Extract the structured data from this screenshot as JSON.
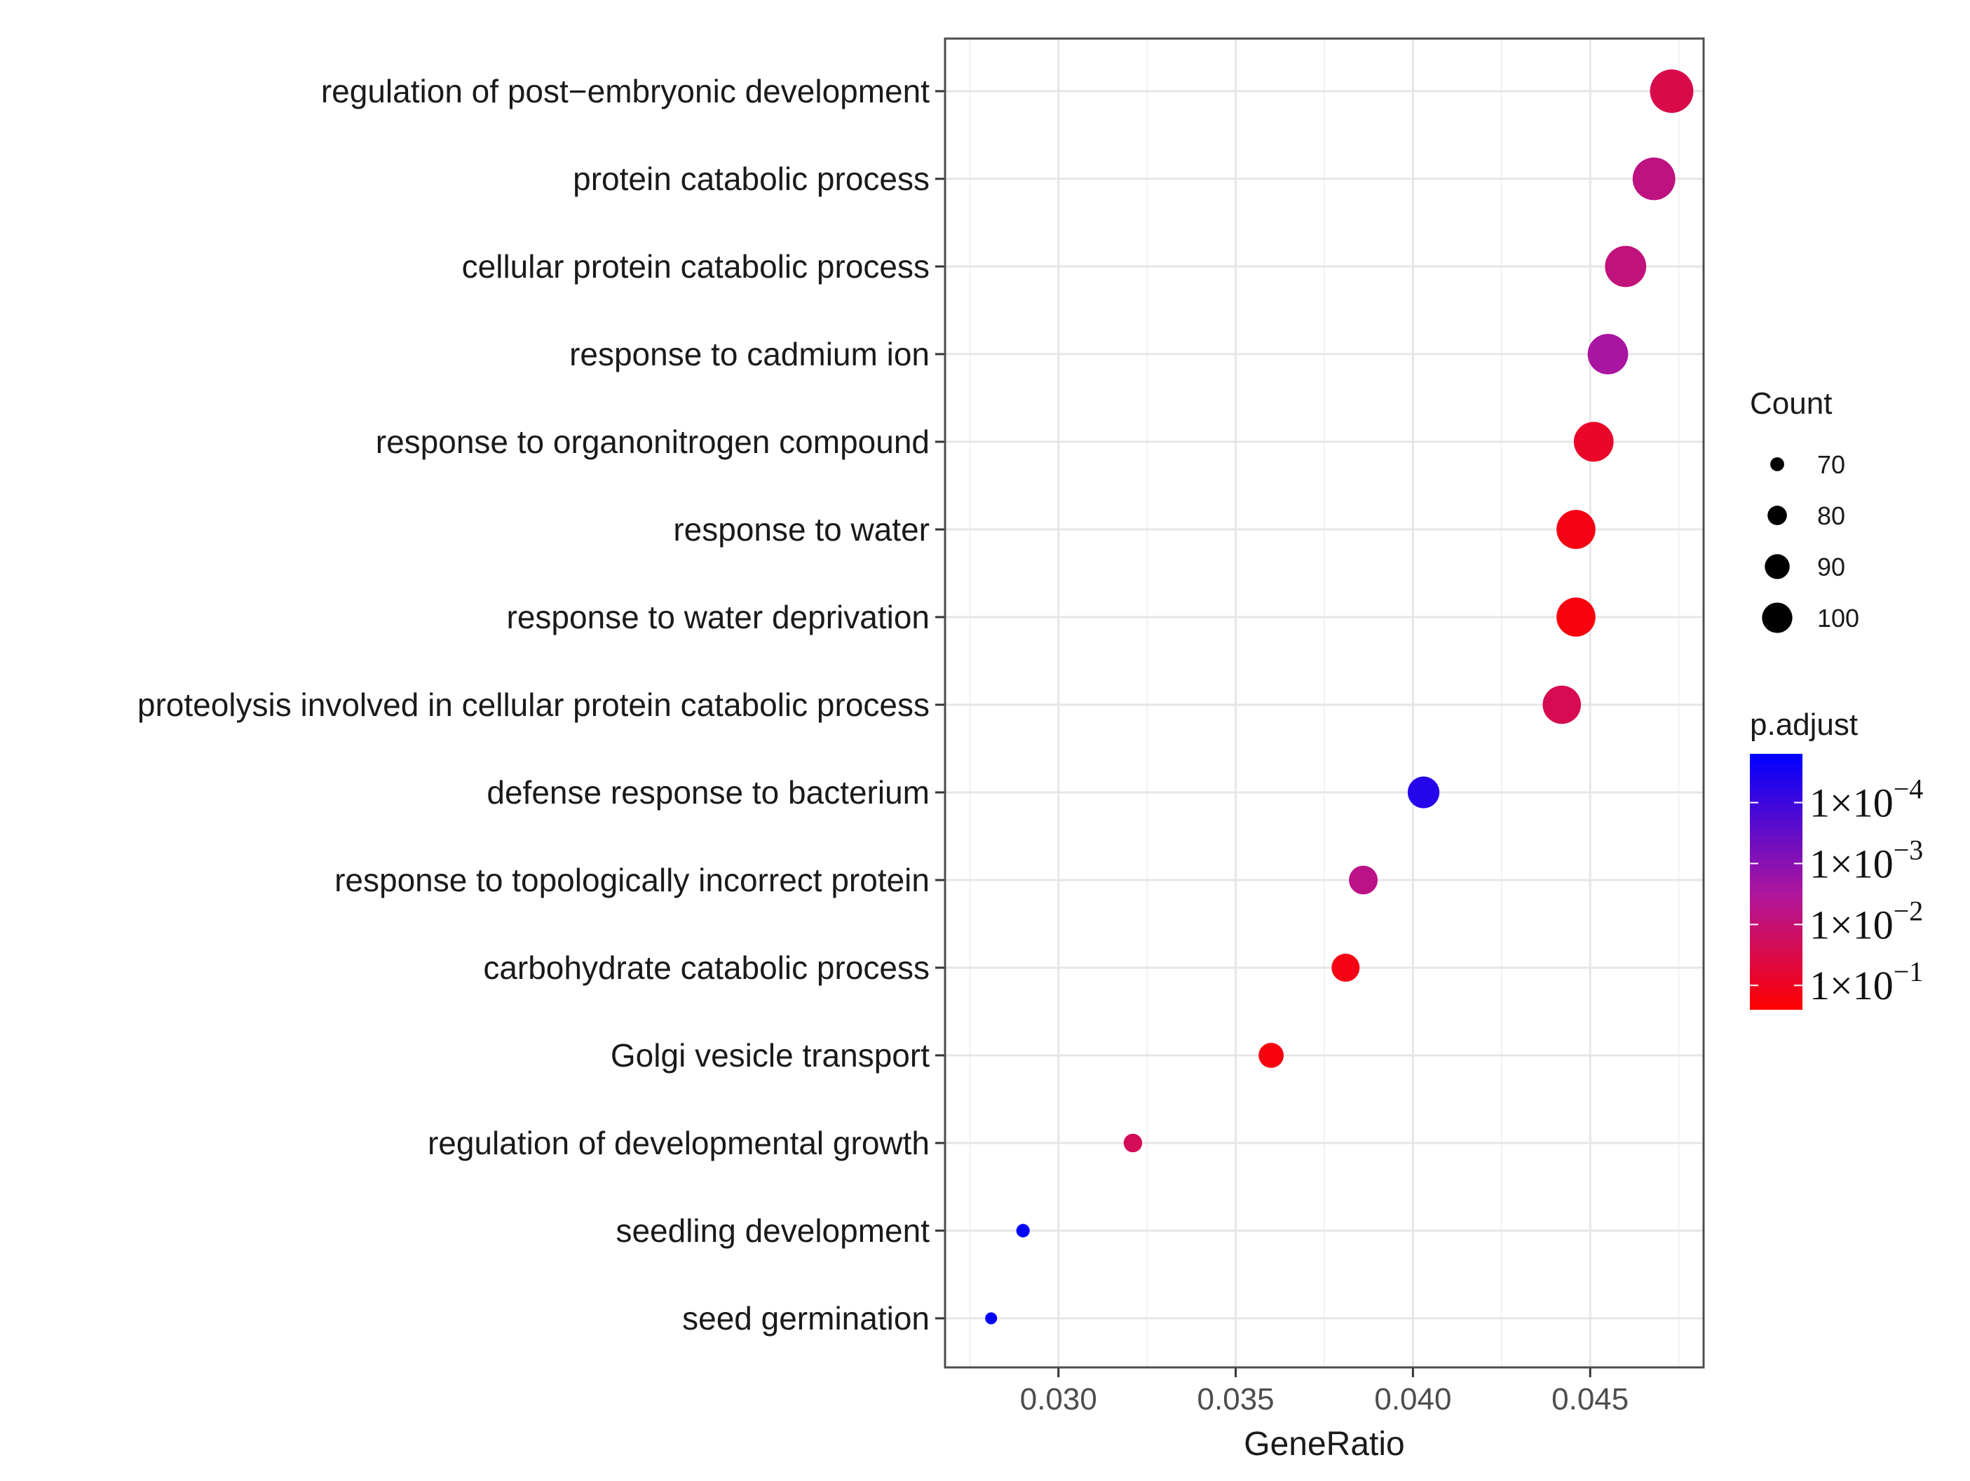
{
  "chart_data": {
    "type": "scatter",
    "title": "",
    "xlabel": "GeneRatio",
    "ylabel": "",
    "xlim": [
      0.0268,
      0.0482
    ],
    "xticks": [
      0.03,
      0.035,
      0.04,
      0.045
    ],
    "xtick_labels": [
      "0.030",
      "0.035",
      "0.040",
      "0.045"
    ],
    "grid": true,
    "points": [
      {
        "term": "regulation of post−embryonic development",
        "gene_ratio": 0.0473,
        "count": 104,
        "p_adjust_log10": -1.7
      },
      {
        "term": "protein catabolic process",
        "gene_ratio": 0.0468,
        "count": 103,
        "p_adjust_log10": -2.5
      },
      {
        "term": "cellular protein catabolic process",
        "gene_ratio": 0.046,
        "count": 101,
        "p_adjust_log10": -2.4
      },
      {
        "term": "response to cadmium ion",
        "gene_ratio": 0.0455,
        "count": 100,
        "p_adjust_log10": -3.0
      },
      {
        "term": "response to organonitrogen compound",
        "gene_ratio": 0.0451,
        "count": 99,
        "p_adjust_log10": -1.2
      },
      {
        "term": "response to water",
        "gene_ratio": 0.0446,
        "count": 98,
        "p_adjust_log10": -0.9
      },
      {
        "term": "response to water deprivation",
        "gene_ratio": 0.0446,
        "count": 98,
        "p_adjust_log10": -0.8
      },
      {
        "term": "proteolysis involved in cellular protein catabolic process",
        "gene_ratio": 0.0442,
        "count": 97,
        "p_adjust_log10": -1.8
      },
      {
        "term": "defense response to bacterium",
        "gene_ratio": 0.0403,
        "count": 88,
        "p_adjust_log10": -4.4
      },
      {
        "term": "response to topologically incorrect protein",
        "gene_ratio": 0.0386,
        "count": 84,
        "p_adjust_log10": -2.6
      },
      {
        "term": "carbohydrate catabolic process",
        "gene_ratio": 0.0381,
        "count": 83,
        "p_adjust_log10": -0.9
      },
      {
        "term": "Golgi vesicle transport",
        "gene_ratio": 0.036,
        "count": 79,
        "p_adjust_log10": -0.8
      },
      {
        "term": "regulation of developmental growth",
        "gene_ratio": 0.0321,
        "count": 70,
        "p_adjust_log10": -1.9
      },
      {
        "term": "seedling development",
        "gene_ratio": 0.029,
        "count": 63,
        "p_adjust_log10": -4.8
      },
      {
        "term": "seed germination",
        "gene_ratio": 0.0281,
        "count": 61,
        "p_adjust_log10": -4.8
      }
    ],
    "size_legend": {
      "title": "Count",
      "values": [
        70,
        80,
        90,
        100
      ],
      "labels": [
        "70",
        "80",
        "90",
        "100"
      ]
    },
    "color_legend": {
      "title": "p.adjust",
      "log10_range": [
        -4.8,
        -0.6
      ],
      "high_color": "#ff0000",
      "mid_color": "#b0169c",
      "low_color": "#0000ff",
      "ticks": [
        {
          "log10": -4,
          "mantissa": "1×10",
          "exponent": "−4"
        },
        {
          "log10": -3,
          "mantissa": "1×10",
          "exponent": "−3"
        },
        {
          "log10": -2,
          "mantissa": "1×10",
          "exponent": "−2"
        },
        {
          "log10": -1,
          "mantissa": "1×10",
          "exponent": "−1"
        }
      ]
    }
  },
  "colors": {
    "panel_border": "#4d4d4d",
    "grid_major": "#e6e6e6",
    "tick": "#333333"
  }
}
